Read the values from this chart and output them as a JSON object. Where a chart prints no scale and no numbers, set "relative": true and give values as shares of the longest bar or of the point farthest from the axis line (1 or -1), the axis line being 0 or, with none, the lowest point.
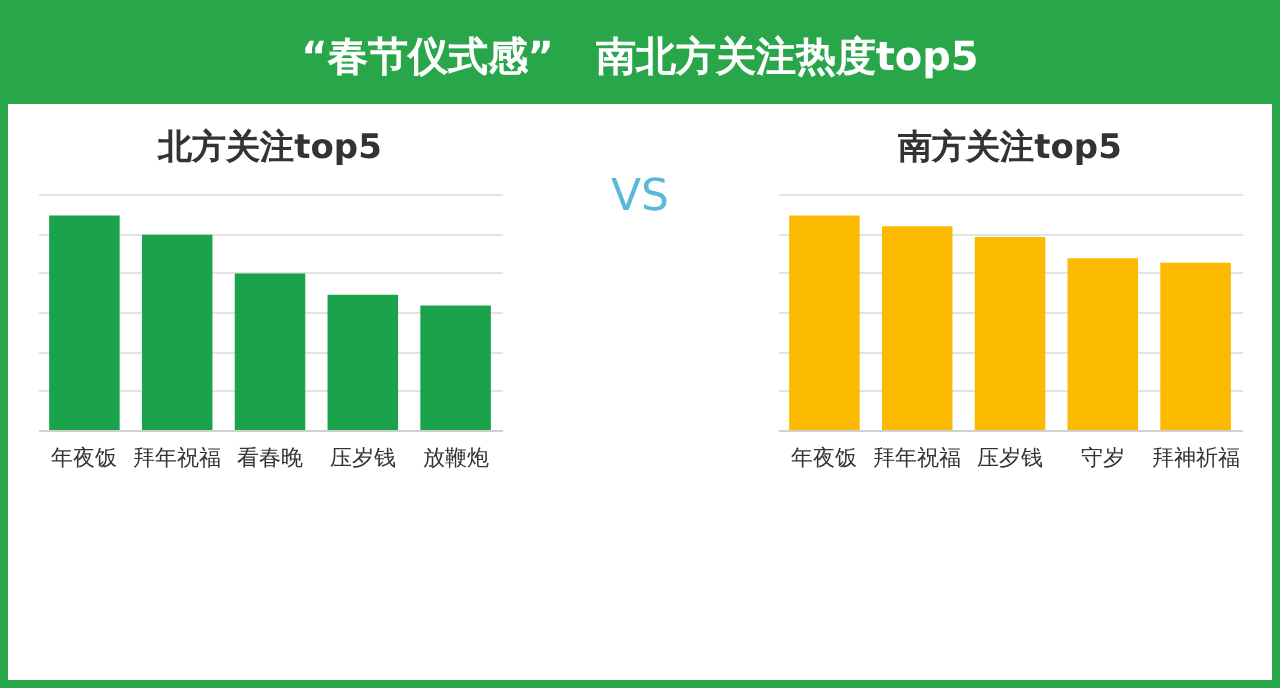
{
  "chart_data": [
    {
      "type": "other",
      "title": "“春节仪式感”   南北方关注热度top5",
      "annotations": [
        "VS"
      ]
    },
    {
      "type": "bar",
      "title": "北方关注top5",
      "categories": [
        "年夜饭",
        "拜年祝福",
        "看春晚",
        "压岁钱",
        "放鞭炮"
      ],
      "values": [
        1,
        0.91,
        0.73,
        0.63,
        0.58
      ],
      "color": "#1aa34a",
      "relative": true,
      "grid": true
    },
    {
      "type": "bar",
      "title": "南方关注top5",
      "categories": [
        "年夜饭",
        "拜年祝福",
        "压岁钱",
        "守岁",
        "拜神祈福"
      ],
      "values": [
        1,
        0.95,
        0.9,
        0.8,
        0.78
      ],
      "color": "#fbb900",
      "relative": true,
      "grid": true
    }
  ]
}
